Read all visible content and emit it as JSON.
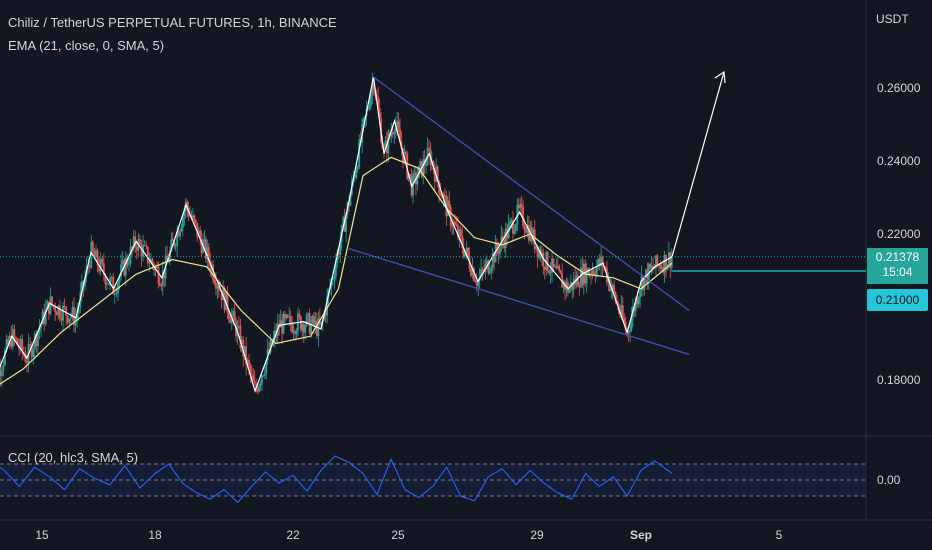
{
  "header": {
    "symbol_line": "Chiliz / TetherUS PERPETUAL FUTURES, 1h, BINANCE",
    "ema_line": "EMA (21, close, 0, SMA, 5)",
    "cci_line": "CCI (20, hlc3, SMA, 5)",
    "currency": "USDT"
  },
  "price_badge": {
    "price": "0.21378",
    "countdown": "15:04"
  },
  "level_badge": {
    "price": "0.21000"
  },
  "colors": {
    "background": "#131722",
    "up": "#26a69a",
    "down": "#ef5350",
    "ema": "#f0e68c",
    "pattern": "#ffffff",
    "wedge": "#3f51b5",
    "cci": "#2962ff",
    "level": "#26c6da"
  },
  "chart_data": [
    {
      "type": "candlestick",
      "x_ticks": [
        "15",
        "18",
        "22",
        "25",
        "29",
        "Sep",
        "5"
      ],
      "y_ticks": [
        "0.18000",
        "0.20000",
        "0.22000",
        "0.24000",
        "0.26000"
      ],
      "ylim": [
        0.171,
        0.27
      ],
      "grid": false,
      "key_points_day": [
        13.6,
        14.2,
        14.6,
        15.2,
        15.9,
        16.3,
        16.9,
        17.5,
        18.2,
        18.9,
        19.6,
        20.4,
        20.9,
        21.6,
        22.3,
        22.8,
        23.6,
        24.3,
        24.6,
        24.9,
        25.4,
        25.9,
        26.4,
        27.3,
        27.8,
        28.5,
        29.2,
        29.9,
        30.3,
        30.9,
        31.6,
        32.0,
        32.4,
        32.9
      ],
      "key_points_price": [
        0.176,
        0.192,
        0.186,
        0.201,
        0.197,
        0.215,
        0.205,
        0.218,
        0.208,
        0.228,
        0.212,
        0.193,
        0.177,
        0.195,
        0.196,
        0.194,
        0.229,
        0.263,
        0.242,
        0.251,
        0.233,
        0.242,
        0.227,
        0.207,
        0.215,
        0.226,
        0.213,
        0.205,
        0.209,
        0.212,
        0.193,
        0.207,
        0.211,
        0.2138
      ],
      "ema_day": [
        13.6,
        14.5,
        15.5,
        16.5,
        17.5,
        18.5,
        19.5,
        20.5,
        21.5,
        22.5,
        23.3,
        24.0,
        24.8,
        25.6,
        26.4,
        27.2,
        28.0,
        28.8,
        29.6,
        30.4,
        31.2,
        32.0,
        32.9
      ],
      "ema_price": [
        0.177,
        0.183,
        0.193,
        0.201,
        0.209,
        0.213,
        0.211,
        0.199,
        0.19,
        0.192,
        0.205,
        0.236,
        0.241,
        0.238,
        0.227,
        0.219,
        0.217,
        0.22,
        0.214,
        0.209,
        0.208,
        0.205,
        0.212
      ]
    },
    {
      "type": "line",
      "name": "CCI",
      "y_ticks": [
        "0.00"
      ],
      "x_day": [
        13.6,
        14.0,
        14.4,
        14.8,
        15.2,
        15.6,
        16.0,
        16.4,
        16.8,
        17.2,
        17.6,
        18.0,
        18.4,
        18.8,
        19.2,
        19.6,
        20.0,
        20.4,
        20.8,
        21.2,
        21.6,
        22.0,
        22.4,
        22.8,
        23.2,
        23.6,
        24.0,
        24.4,
        24.8,
        25.2,
        25.6,
        26.0,
        26.4,
        26.8,
        27.2,
        27.6,
        28.0,
        28.4,
        28.8,
        29.2,
        29.6,
        30.0,
        30.4,
        30.8,
        31.2,
        31.6,
        32.0,
        32.4,
        32.9
      ],
      "values": [
        120,
        60,
        -40,
        80,
        20,
        -60,
        70,
        10,
        -30,
        90,
        -50,
        40,
        100,
        -20,
        -80,
        -120,
        -60,
        -140,
        -40,
        50,
        -20,
        30,
        -70,
        60,
        150,
        110,
        40,
        -90,
        130,
        -60,
        -110,
        -40,
        80,
        -100,
        -130,
        20,
        70,
        -30,
        60,
        -20,
        -80,
        -120,
        40,
        -40,
        20,
        -100,
        60,
        120,
        40
      ]
    }
  ]
}
